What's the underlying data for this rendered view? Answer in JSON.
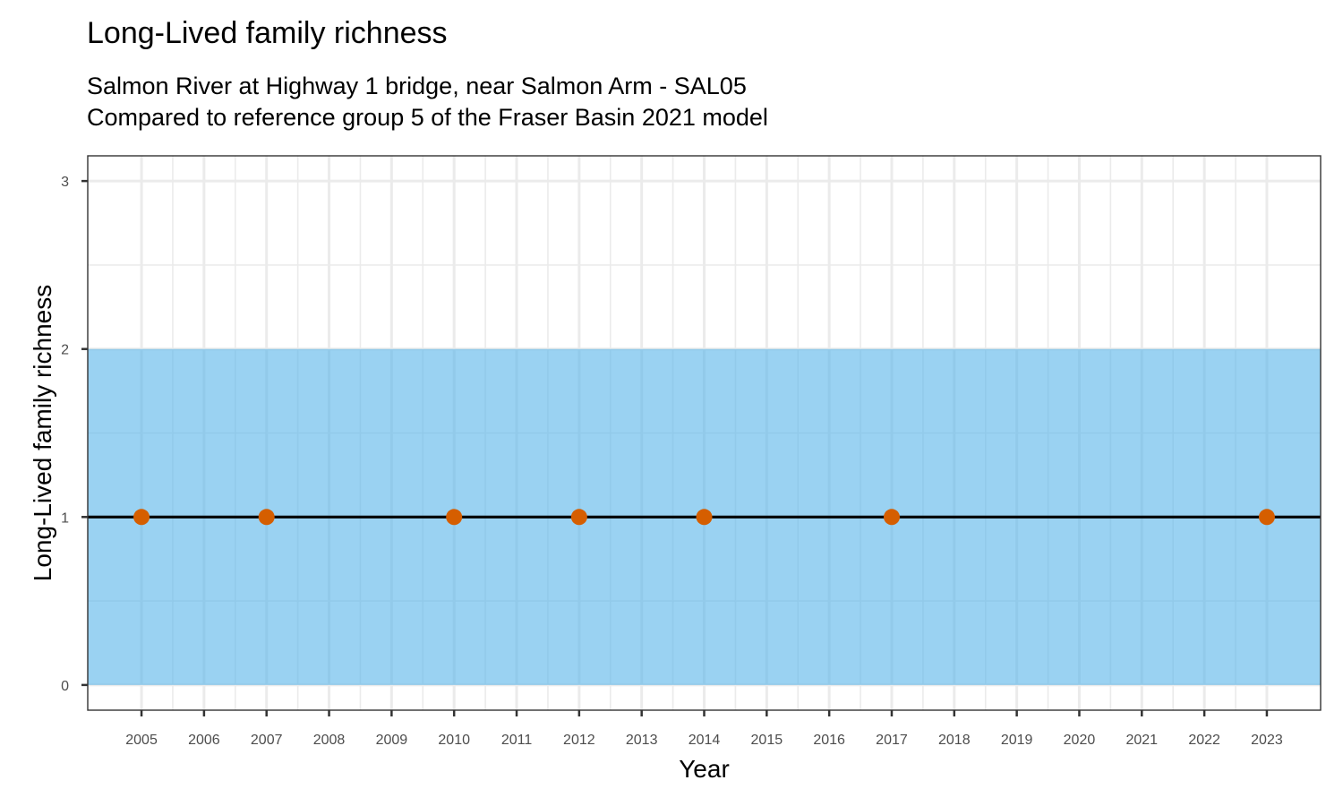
{
  "chart_data": {
    "type": "line",
    "title": "Long-Lived family richness",
    "subtitle_lines": [
      "Salmon River at Highway 1 bridge, near Salmon Arm - SAL05",
      "Compared to reference group 5 of the Fraser Basin 2021 model"
    ],
    "xlabel": "Year",
    "ylabel": "Long-Lived family richness",
    "x_ticks": [
      2005,
      2006,
      2007,
      2008,
      2009,
      2010,
      2011,
      2012,
      2013,
      2014,
      2015,
      2016,
      2017,
      2018,
      2019,
      2020,
      2021,
      2022,
      2023
    ],
    "y_ticks": [
      0,
      1,
      2,
      3
    ],
    "xlim": [
      2004.14,
      2023.86
    ],
    "ylim": [
      -0.15,
      3.15
    ],
    "reference_band": {
      "ymin": 0,
      "ymax": 2,
      "color": "#56b4e9"
    },
    "reference_line": {
      "y": 1,
      "color": "#000000"
    },
    "series": [
      {
        "x": [
          2005,
          2007,
          2010,
          2012,
          2014,
          2017,
          2023
        ],
        "values": [
          1,
          1,
          1,
          1,
          1,
          1,
          1
        ],
        "color": "#d55e00"
      }
    ],
    "grid": true,
    "legend": "none"
  }
}
